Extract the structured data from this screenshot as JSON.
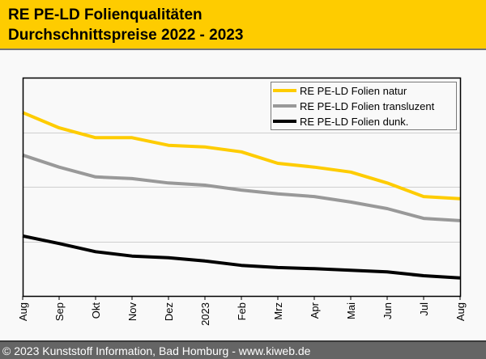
{
  "header": {
    "title_line1": "RE PE-LD Folienqualitäten",
    "title_line2": "Durchschnittspreise 2022 - 2023"
  },
  "footer": {
    "text": "© 2023 Kunststoff Information, Bad Homburg - www.kiweb.de"
  },
  "chart_data": {
    "type": "line",
    "title": "RE PE-LD Folienqualitäten Durchschnittspreise 2022 - 2023",
    "xlabel": "",
    "ylabel": "",
    "y_unit_note": "no y-axis labels shown; values in relative grid units (0 = axis bottom, 4 = axis top)",
    "ylim": [
      0,
      4
    ],
    "gridlines_y": [
      1,
      2,
      3
    ],
    "grid": true,
    "legend_position": "top-right",
    "categories": [
      "Aug",
      "Sep",
      "Okt",
      "Nov",
      "Dez",
      "2023",
      "Feb",
      "Mrz",
      "Apr",
      "Mai",
      "Jun",
      "Jul",
      "Aug"
    ],
    "series": [
      {
        "name": "RE PE-LD Folien natur",
        "color": "#fecc00",
        "values": [
          3.36,
          3.08,
          2.9,
          2.9,
          2.76,
          2.73,
          2.64,
          2.43,
          2.36,
          2.27,
          2.07,
          1.82,
          1.78
        ]
      },
      {
        "name": "RE PE-LD Folien transluzent",
        "color": "#999999",
        "values": [
          2.58,
          2.36,
          2.18,
          2.15,
          2.07,
          2.03,
          1.94,
          1.87,
          1.82,
          1.72,
          1.6,
          1.42,
          1.38
        ]
      },
      {
        "name": "RE PE-LD Folien dunk.",
        "color": "#000000",
        "values": [
          1.1,
          0.96,
          0.81,
          0.73,
          0.7,
          0.64,
          0.56,
          0.52,
          0.5,
          0.47,
          0.44,
          0.37,
          0.33
        ]
      }
    ]
  }
}
